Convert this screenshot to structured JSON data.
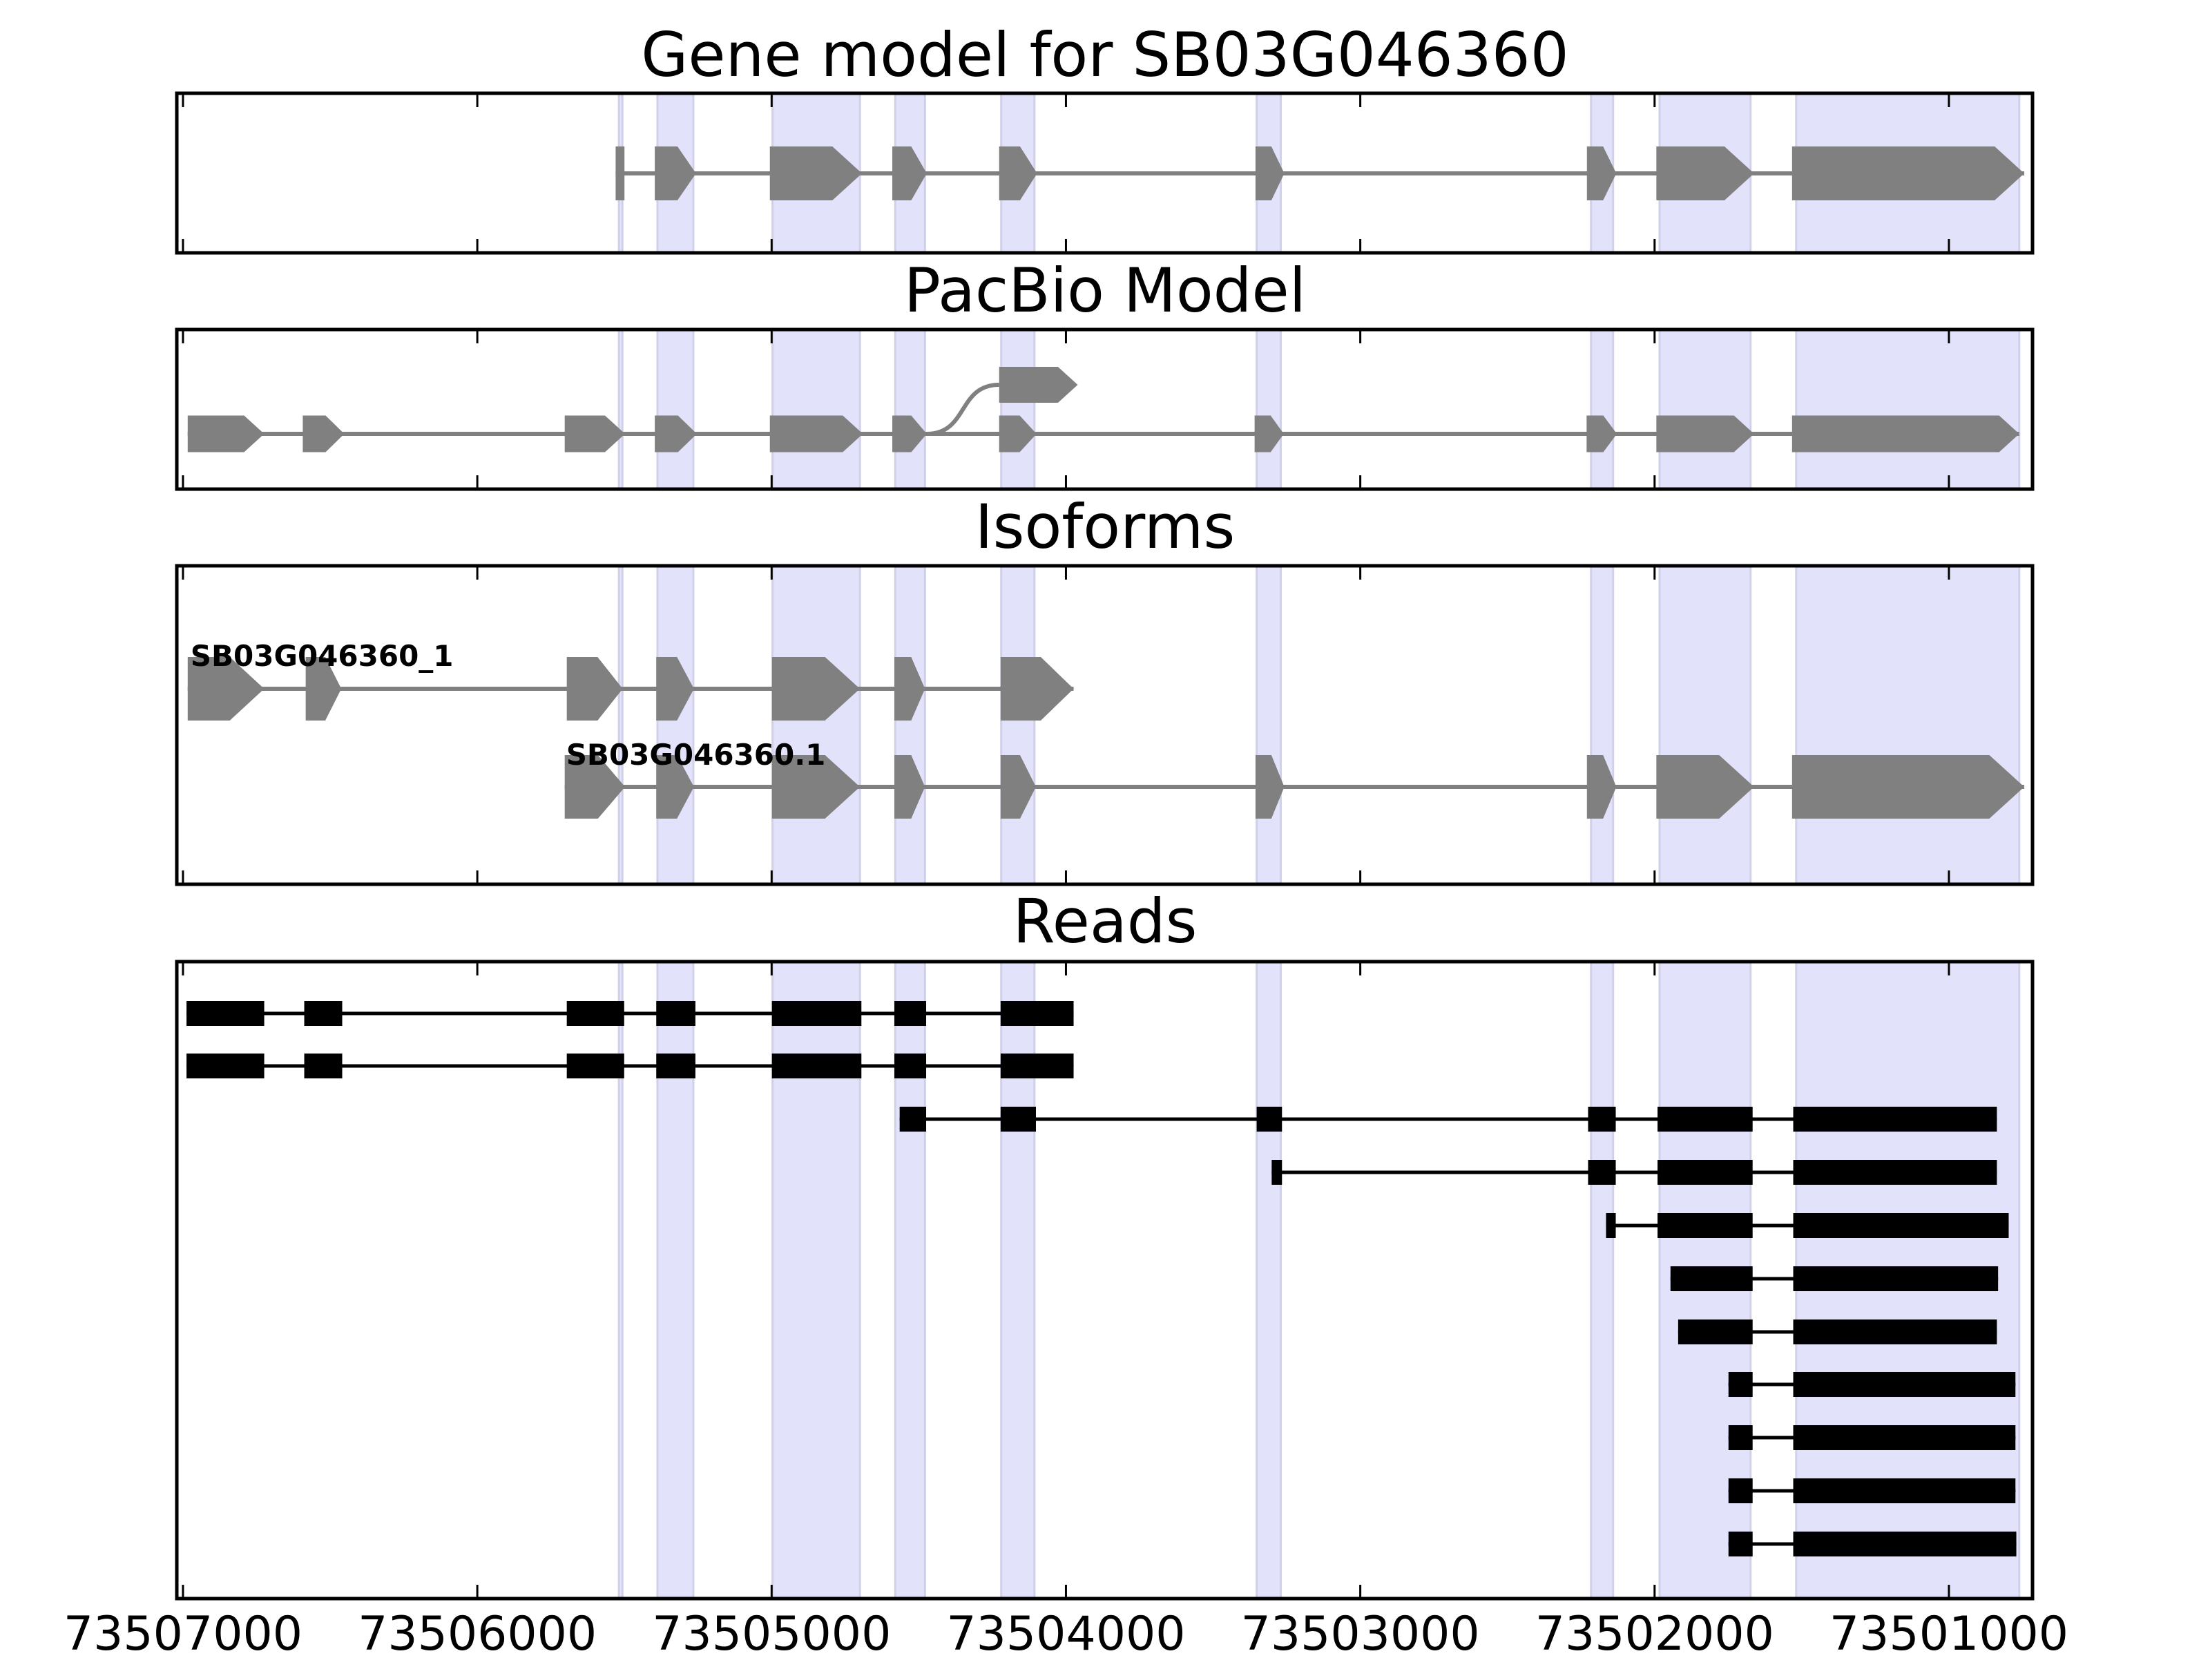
{
  "chart_data": {
    "type": "gene-track",
    "xaxis": {
      "range": [
        73507021,
        73500716
      ],
      "reversed": true,
      "ticks": [
        73507000,
        73506000,
        73505000,
        73504000,
        73503000,
        73502000,
        73501000
      ],
      "tick_labels": [
        "73507000",
        "73506000",
        "73505000",
        "73504000",
        "73503000",
        "73502000",
        "73501000"
      ]
    },
    "colors": {
      "shade": "#e2e2fa",
      "shade_edge": "#d0d0e8",
      "model_exon": "#808080",
      "read_block": "#000000",
      "frame": "#000000"
    },
    "highlight_regions": [
      [
        73505519,
        73505507
      ],
      [
        73505388,
        73505266
      ],
      [
        73504997,
        73504700
      ],
      [
        73504580,
        73504479
      ],
      [
        73504220,
        73504107
      ],
      [
        73503352,
        73503270
      ],
      [
        73502216,
        73502141
      ],
      [
        73501983,
        73501674
      ],
      [
        73501519,
        73500761
      ]
    ],
    "panels": [
      {
        "id": "gene-model",
        "title": "Gene model for SB03G046360",
        "tracks": [
          {
            "exons": [
              [
                73505530,
                73505500
              ],
              [
                73505397,
                73505257
              ],
              [
                73505006,
                73504693
              ],
              [
                73504590,
                73504473
              ],
              [
                73504227,
                73504098
              ],
              [
                73503356,
                73503258
              ],
              [
                73502230,
                73502130
              ],
              [
                73501994,
                73501662
              ],
              [
                73501533,
                73500744
              ]
            ],
            "first_flat": true
          }
        ]
      },
      {
        "id": "pacbio-model",
        "title": "PacBio Model",
        "tracks": [
          {
            "exons": [
              [
                73506984,
                73506724
              ],
              [
                73506593,
                73506452
              ],
              [
                73505703,
                73505498
              ],
              [
                73505397,
                73505254
              ],
              [
                73505006,
                73504690
              ],
              [
                73504590,
                73504473
              ],
              [
                73504227,
                73504100
              ],
              [
                73503359,
                73503260
              ],
              [
                73502231,
                73502128
              ],
              [
                73501994,
                73501662
              ],
              [
                73501533,
                73500761
              ]
            ]
          }
        ],
        "alternative_branch": {
          "from_bp": 73504473,
          "exon": [
            73504227,
            73503960
          ]
        }
      },
      {
        "id": "isoforms",
        "title": "Isoforms",
        "tracks": [
          {
            "label": "SB03G046360_1",
            "exons": [
              [
                73506984,
                73506724
              ],
              [
                73506583,
                73506462
              ],
              [
                73505696,
                73505506
              ],
              [
                73505392,
                73505264
              ],
              [
                73504999,
                73504700
              ],
              [
                73504583,
                73504479
              ],
              [
                73504222,
                73503974
              ]
            ]
          },
          {
            "label": "SB03G046360.1",
            "exons": [
              [
                73505703,
                73505498
              ],
              [
                73505392,
                73505264
              ],
              [
                73504999,
                73504700
              ],
              [
                73504583,
                73504479
              ],
              [
                73504222,
                73504102
              ],
              [
                73503356,
                73503258
              ],
              [
                73502230,
                73502130
              ],
              [
                73501994,
                73501662
              ],
              [
                73501533,
                73500744
              ]
            ]
          }
        ]
      },
      {
        "id": "reads",
        "title": "Reads",
        "reads": [
          [
            [
              73506988,
              73506724
            ],
            [
              73506588,
              73506459
            ],
            [
              73505696,
              73505501
            ],
            [
              73505392,
              73505259
            ],
            [
              73504999,
              73504695
            ],
            [
              73504583,
              73504475
            ],
            [
              73504222,
              73503974
            ]
          ],
          [
            [
              73506988,
              73506724
            ],
            [
              73506588,
              73506459
            ],
            [
              73505696,
              73505501
            ],
            [
              73505392,
              73505259
            ],
            [
              73504999,
              73504695
            ],
            [
              73504583,
              73504475
            ],
            [
              73504222,
              73503974
            ]
          ],
          [
            [
              73504565,
              73504475
            ],
            [
              73504222,
              73504102
            ],
            [
              73503352,
              73503266
            ],
            [
              73502226,
              73502132
            ],
            [
              73501990,
              73501667
            ],
            [
              73501529,
              73500837
            ]
          ],
          [
            [
              73503301,
              73503266
            ],
            [
              73502226,
              73502132
            ],
            [
              73501990,
              73501667
            ],
            [
              73501529,
              73500837
            ]
          ],
          [
            [
              73502165,
              73502132
            ],
            [
              73501990,
              73501667
            ],
            [
              73501529,
              73500797
            ]
          ],
          [
            [
              73501946,
              73501667
            ],
            [
              73501529,
              73500833
            ]
          ],
          [
            [
              73501920,
              73501667
            ],
            [
              73501529,
              73500837
            ]
          ],
          [
            [
              73501749,
              73501667
            ],
            [
              73501529,
              73500774
            ]
          ],
          [
            [
              73501749,
              73501667
            ],
            [
              73501529,
              73500774
            ]
          ],
          [
            [
              73501749,
              73501667
            ],
            [
              73501529,
              73500774
            ]
          ],
          [
            [
              73501749,
              73501667
            ],
            [
              73501529,
              73500771
            ]
          ]
        ]
      }
    ]
  }
}
